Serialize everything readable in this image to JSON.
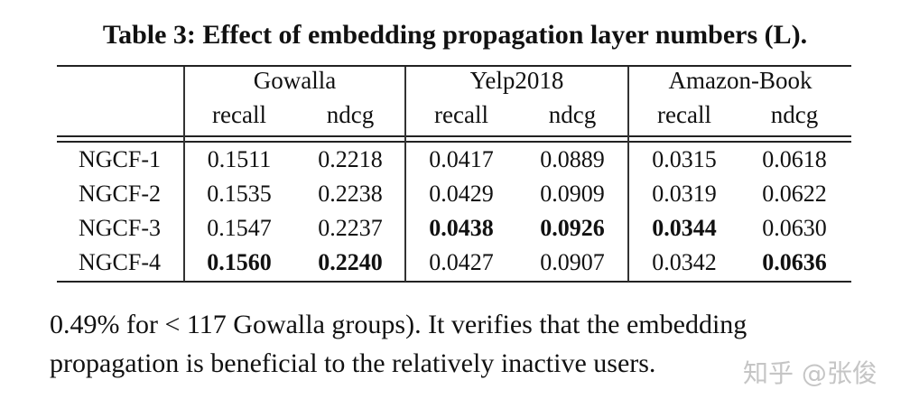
{
  "caption": "Table 3: Effect of embedding propagation layer numbers (L).",
  "table": {
    "datasets": [
      "Gowalla",
      "Yelp2018",
      "Amazon-Book"
    ],
    "metrics": [
      "recall",
      "ndcg",
      "recall",
      "ndcg",
      "recall",
      "ndcg"
    ],
    "rows": [
      {
        "label": "NGCF-1",
        "values": [
          "0.1511",
          "0.2218",
          "0.0417",
          "0.0889",
          "0.0315",
          "0.0618"
        ],
        "bold": [
          false,
          false,
          false,
          false,
          false,
          false
        ]
      },
      {
        "label": "NGCF-2",
        "values": [
          "0.1535",
          "0.2238",
          "0.0429",
          "0.0909",
          "0.0319",
          "0.0622"
        ],
        "bold": [
          false,
          false,
          false,
          false,
          false,
          false
        ]
      },
      {
        "label": "NGCF-3",
        "values": [
          "0.1547",
          "0.2237",
          "0.0438",
          "0.0926",
          "0.0344",
          "0.0630"
        ],
        "bold": [
          false,
          false,
          true,
          true,
          true,
          false
        ]
      },
      {
        "label": "NGCF-4",
        "values": [
          "0.1560",
          "0.2240",
          "0.0427",
          "0.0907",
          "0.0342",
          "0.0636"
        ],
        "bold": [
          true,
          true,
          false,
          false,
          false,
          true
        ]
      }
    ]
  },
  "paragraph": [
    "0.49% for < 117 Gowalla groups). It verifies that the embedding",
    "propagation is beneficial to the relatively inactive users."
  ],
  "watermark": "知乎 @张俊"
}
